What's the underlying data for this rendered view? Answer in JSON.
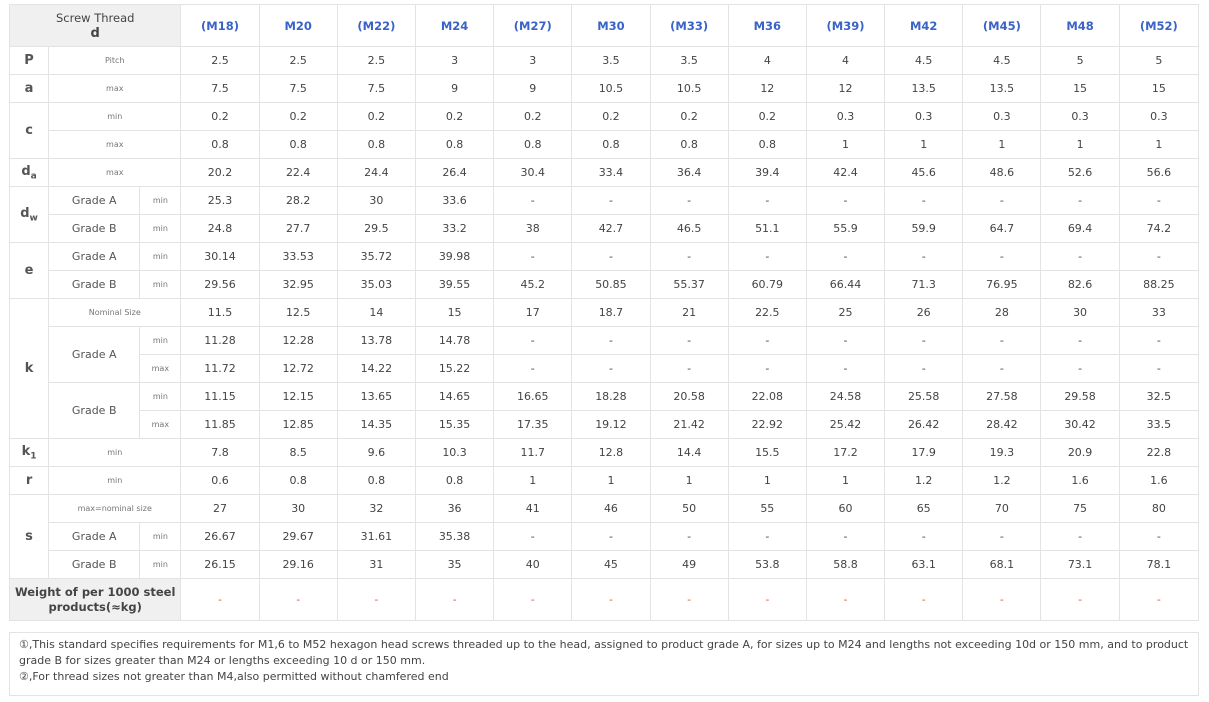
{
  "header": {
    "corner_line1": "Screw Thread",
    "corner_line2": "d",
    "sizes": [
      "(M18)",
      "M20",
      "(M22)",
      "M24",
      "(M27)",
      "M30",
      "(M33)",
      "M36",
      "(M39)",
      "M42",
      "(M45)",
      "M48",
      "(M52)"
    ]
  },
  "rows": {
    "P": {
      "symbol": "P",
      "label": "Pitch",
      "values": [
        "2.5",
        "2.5",
        "2.5",
        "3",
        "3",
        "3.5",
        "3.5",
        "4",
        "4",
        "4.5",
        "4.5",
        "5",
        "5"
      ]
    },
    "a_max": {
      "symbol": "a",
      "label": "max",
      "values": [
        "7.5",
        "7.5",
        "7.5",
        "9",
        "9",
        "10.5",
        "10.5",
        "12",
        "12",
        "13.5",
        "13.5",
        "15",
        "15"
      ]
    },
    "c_min": {
      "symbol": "c",
      "label": "min",
      "values": [
        "0.2",
        "0.2",
        "0.2",
        "0.2",
        "0.2",
        "0.2",
        "0.2",
        "0.2",
        "0.3",
        "0.3",
        "0.3",
        "0.3",
        "0.3"
      ]
    },
    "c_max": {
      "label": "max",
      "values": [
        "0.8",
        "0.8",
        "0.8",
        "0.8",
        "0.8",
        "0.8",
        "0.8",
        "0.8",
        "1",
        "1",
        "1",
        "1",
        "1"
      ]
    },
    "da_max": {
      "symbol": "d",
      "symbol_sub": "a",
      "label": "max",
      "values": [
        "20.2",
        "22.4",
        "24.4",
        "26.4",
        "30.4",
        "33.4",
        "36.4",
        "39.4",
        "42.4",
        "45.6",
        "48.6",
        "52.6",
        "56.6"
      ]
    },
    "dw_A": {
      "symbol": "d",
      "symbol_sub": "w",
      "grade": "Grade A",
      "label": "min",
      "values": [
        "25.3",
        "28.2",
        "30",
        "33.6",
        "-",
        "-",
        "-",
        "-",
        "-",
        "-",
        "-",
        "-",
        "-"
      ]
    },
    "dw_B": {
      "grade": "Grade B",
      "label": "min",
      "values": [
        "24.8",
        "27.7",
        "29.5",
        "33.2",
        "38",
        "42.7",
        "46.5",
        "51.1",
        "55.9",
        "59.9",
        "64.7",
        "69.4",
        "74.2"
      ]
    },
    "e_A": {
      "symbol": "e",
      "grade": "Grade A",
      "label": "min",
      "values": [
        "30.14",
        "33.53",
        "35.72",
        "39.98",
        "-",
        "-",
        "-",
        "-",
        "-",
        "-",
        "-",
        "-",
        "-"
      ]
    },
    "e_B": {
      "grade": "Grade B",
      "label": "min",
      "values": [
        "29.56",
        "32.95",
        "35.03",
        "39.55",
        "45.2",
        "50.85",
        "55.37",
        "60.79",
        "66.44",
        "71.3",
        "76.95",
        "82.6",
        "88.25"
      ]
    },
    "k_nom": {
      "symbol": "k",
      "label": "Nominal Size",
      "values": [
        "11.5",
        "12.5",
        "14",
        "15",
        "17",
        "18.7",
        "21",
        "22.5",
        "25",
        "26",
        "28",
        "30",
        "33"
      ]
    },
    "k_A_min": {
      "grade": "Grade A",
      "label": "min",
      "values": [
        "11.28",
        "12.28",
        "13.78",
        "14.78",
        "-",
        "-",
        "-",
        "-",
        "-",
        "-",
        "-",
        "-",
        "-"
      ]
    },
    "k_A_max": {
      "label": "max",
      "values": [
        "11.72",
        "12.72",
        "14.22",
        "15.22",
        "-",
        "-",
        "-",
        "-",
        "-",
        "-",
        "-",
        "-",
        "-"
      ]
    },
    "k_B_min": {
      "grade": "Grade B",
      "label": "min",
      "values": [
        "11.15",
        "12.15",
        "13.65",
        "14.65",
        "16.65",
        "18.28",
        "20.58",
        "22.08",
        "24.58",
        "25.58",
        "27.58",
        "29.58",
        "32.5"
      ]
    },
    "k_B_max": {
      "label": "max",
      "values": [
        "11.85",
        "12.85",
        "14.35",
        "15.35",
        "17.35",
        "19.12",
        "21.42",
        "22.92",
        "25.42",
        "26.42",
        "28.42",
        "30.42",
        "33.5"
      ]
    },
    "k1_min": {
      "symbol": "k",
      "symbol_sub": "1",
      "label": "min",
      "values": [
        "7.8",
        "8.5",
        "9.6",
        "10.3",
        "11.7",
        "12.8",
        "14.4",
        "15.5",
        "17.2",
        "17.9",
        "19.3",
        "20.9",
        "22.8"
      ]
    },
    "r_min": {
      "symbol": "r",
      "label": "min",
      "values": [
        "0.6",
        "0.8",
        "0.8",
        "0.8",
        "1",
        "1",
        "1",
        "1",
        "1",
        "1.2",
        "1.2",
        "1.6",
        "1.6"
      ]
    },
    "s_nom": {
      "symbol": "s",
      "label": "max=nominal size",
      "values": [
        "27",
        "30",
        "32",
        "36",
        "41",
        "46",
        "50",
        "55",
        "60",
        "65",
        "70",
        "75",
        "80"
      ]
    },
    "s_A": {
      "grade": "Grade A",
      "label": "min",
      "values": [
        "26.67",
        "29.67",
        "31.61",
        "35.38",
        "-",
        "-",
        "-",
        "-",
        "-",
        "-",
        "-",
        "-",
        "-"
      ]
    },
    "s_B": {
      "grade": "Grade B",
      "label": "min",
      "values": [
        "26.15",
        "29.16",
        "31",
        "35",
        "40",
        "45",
        "49",
        "53.8",
        "58.8",
        "63.1",
        "68.1",
        "73.1",
        "78.1"
      ]
    }
  },
  "weight": {
    "label_line1": "Weight of per 1000 steel",
    "label_line2": "products(≈kg)",
    "values": [
      "-",
      "-",
      "-",
      "-",
      "-",
      "-",
      "-",
      "-",
      "-",
      "-",
      "-",
      "-",
      "-"
    ]
  },
  "notes": {
    "note1": "①,This standard specifies requirements for M1,6 to M52 hexagon head screws threaded up to the head, assigned to product grade A, for sizes up to M24 and lengths not exceeding 10d or 150 mm, and to product grade B for sizes greater than M24 or lengths exceeding 10 d or 150 mm.",
    "note2": "②,For thread sizes not greater than M4,also permitted without chamfered end"
  },
  "colors": {
    "size_header": "#3a63c7",
    "weight_dash": "#e0552d",
    "header_bg": "#f0f0f0",
    "border": "#e3e3e3"
  }
}
